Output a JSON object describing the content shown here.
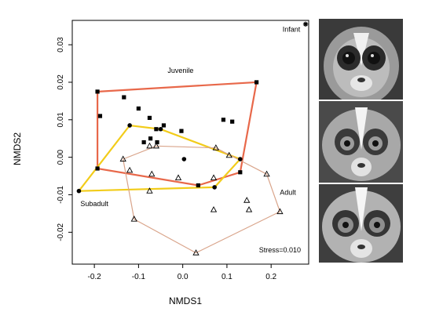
{
  "chart_data": {
    "type": "scatter",
    "xlabel": "NMDS1",
    "ylabel": "NMDS2",
    "xlim": [
      -0.25,
      0.285
    ],
    "ylim": [
      -0.0285,
      0.0365
    ],
    "xticks": [
      -0.2,
      -0.1,
      0.0,
      0.1,
      0.2
    ],
    "yticks": [
      -0.02,
      -0.01,
      0.0,
      0.01,
      0.02,
      0.03
    ],
    "xtick_labels": [
      "-0.2",
      "-0.1",
      "0.0",
      "0.1",
      "0.2"
    ],
    "ytick_labels": [
      "-0.02",
      "-0.01",
      "0.00",
      "0.01",
      "0.02",
      "0.03"
    ],
    "stress_label": "Stress=0.010",
    "groups": [
      {
        "name": "Infant",
        "marker": "asterisk",
        "color": "#000000",
        "points": [
          [
            0.278,
            0.0355
          ]
        ],
        "hull": [],
        "hull_color": ""
      },
      {
        "name": "Juvenile",
        "marker": "filled-square",
        "color": "#000000",
        "points": [
          [
            -0.193,
            0.0175
          ],
          [
            -0.187,
            0.011
          ],
          [
            -0.133,
            0.016
          ],
          [
            -0.1,
            0.013
          ],
          [
            -0.075,
            0.0105
          ],
          [
            -0.073,
            0.005
          ],
          [
            -0.06,
            0.0075
          ],
          [
            -0.043,
            0.0085
          ],
          [
            -0.058,
            0.004
          ],
          [
            -0.088,
            0.004
          ],
          [
            -0.003,
            0.007
          ],
          [
            0.092,
            0.01
          ],
          [
            0.112,
            0.0095
          ],
          [
            0.167,
            0.02
          ],
          [
            0.13,
            -0.004
          ],
          [
            0.035,
            -0.0075
          ],
          [
            -0.193,
            -0.003
          ]
        ],
        "hull": [
          [
            -0.193,
            0.0175
          ],
          [
            0.167,
            0.02
          ],
          [
            0.13,
            -0.004
          ],
          [
            0.035,
            -0.0075
          ],
          [
            -0.193,
            -0.003
          ]
        ],
        "hull_color": "#e8684a"
      },
      {
        "name": "Subadult",
        "marker": "filled-circle",
        "color": "#000000",
        "points": [
          [
            -0.235,
            -0.009
          ],
          [
            -0.12,
            0.0085
          ],
          [
            -0.05,
            0.0075
          ],
          [
            0.003,
            -0.0005
          ],
          [
            0.072,
            -0.008
          ],
          [
            0.13,
            -0.0005
          ]
        ],
        "hull": [
          [
            -0.235,
            -0.009
          ],
          [
            -0.12,
            0.0085
          ],
          [
            -0.05,
            0.0075
          ],
          [
            0.13,
            -0.0005
          ],
          [
            0.072,
            -0.008
          ]
        ],
        "hull_color": "#f2cc1a"
      },
      {
        "name": "Adult",
        "marker": "open-triangle",
        "color": "#000000",
        "points": [
          [
            -0.135,
            -0.0005
          ],
          [
            -0.12,
            -0.0035
          ],
          [
            -0.07,
            -0.0045
          ],
          [
            -0.06,
            0.003
          ],
          [
            -0.075,
            -0.009
          ],
          [
            -0.01,
            -0.0055
          ],
          [
            0.075,
            0.0025
          ],
          [
            0.07,
            -0.0055
          ],
          [
            0.07,
            -0.014
          ],
          [
            0.145,
            -0.0115
          ],
          [
            0.105,
            0.0005
          ],
          [
            0.15,
            -0.014
          ],
          [
            0.19,
            -0.0045
          ],
          [
            0.22,
            -0.0145
          ],
          [
            0.03,
            -0.0255
          ],
          [
            -0.11,
            -0.0165
          ],
          [
            -0.075,
            0.003
          ]
        ],
        "hull": [
          [
            -0.135,
            -0.0005
          ],
          [
            -0.06,
            0.003
          ],
          [
            0.075,
            0.0025
          ],
          [
            0.19,
            -0.0045
          ],
          [
            0.22,
            -0.0145
          ],
          [
            0.03,
            -0.0255
          ],
          [
            -0.11,
            -0.0165
          ]
        ],
        "hull_color": "#d9a48a"
      }
    ],
    "group_labels": [
      {
        "text": "Infant",
        "x": 0.246,
        "y": 0.0335
      },
      {
        "text": "Juvenile",
        "x": -0.005,
        "y": 0.0225
      },
      {
        "text": "Subadult",
        "x": -0.2,
        "y": -0.013
      },
      {
        "text": "Adult",
        "x": 0.238,
        "y": -0.01
      }
    ]
  }
}
